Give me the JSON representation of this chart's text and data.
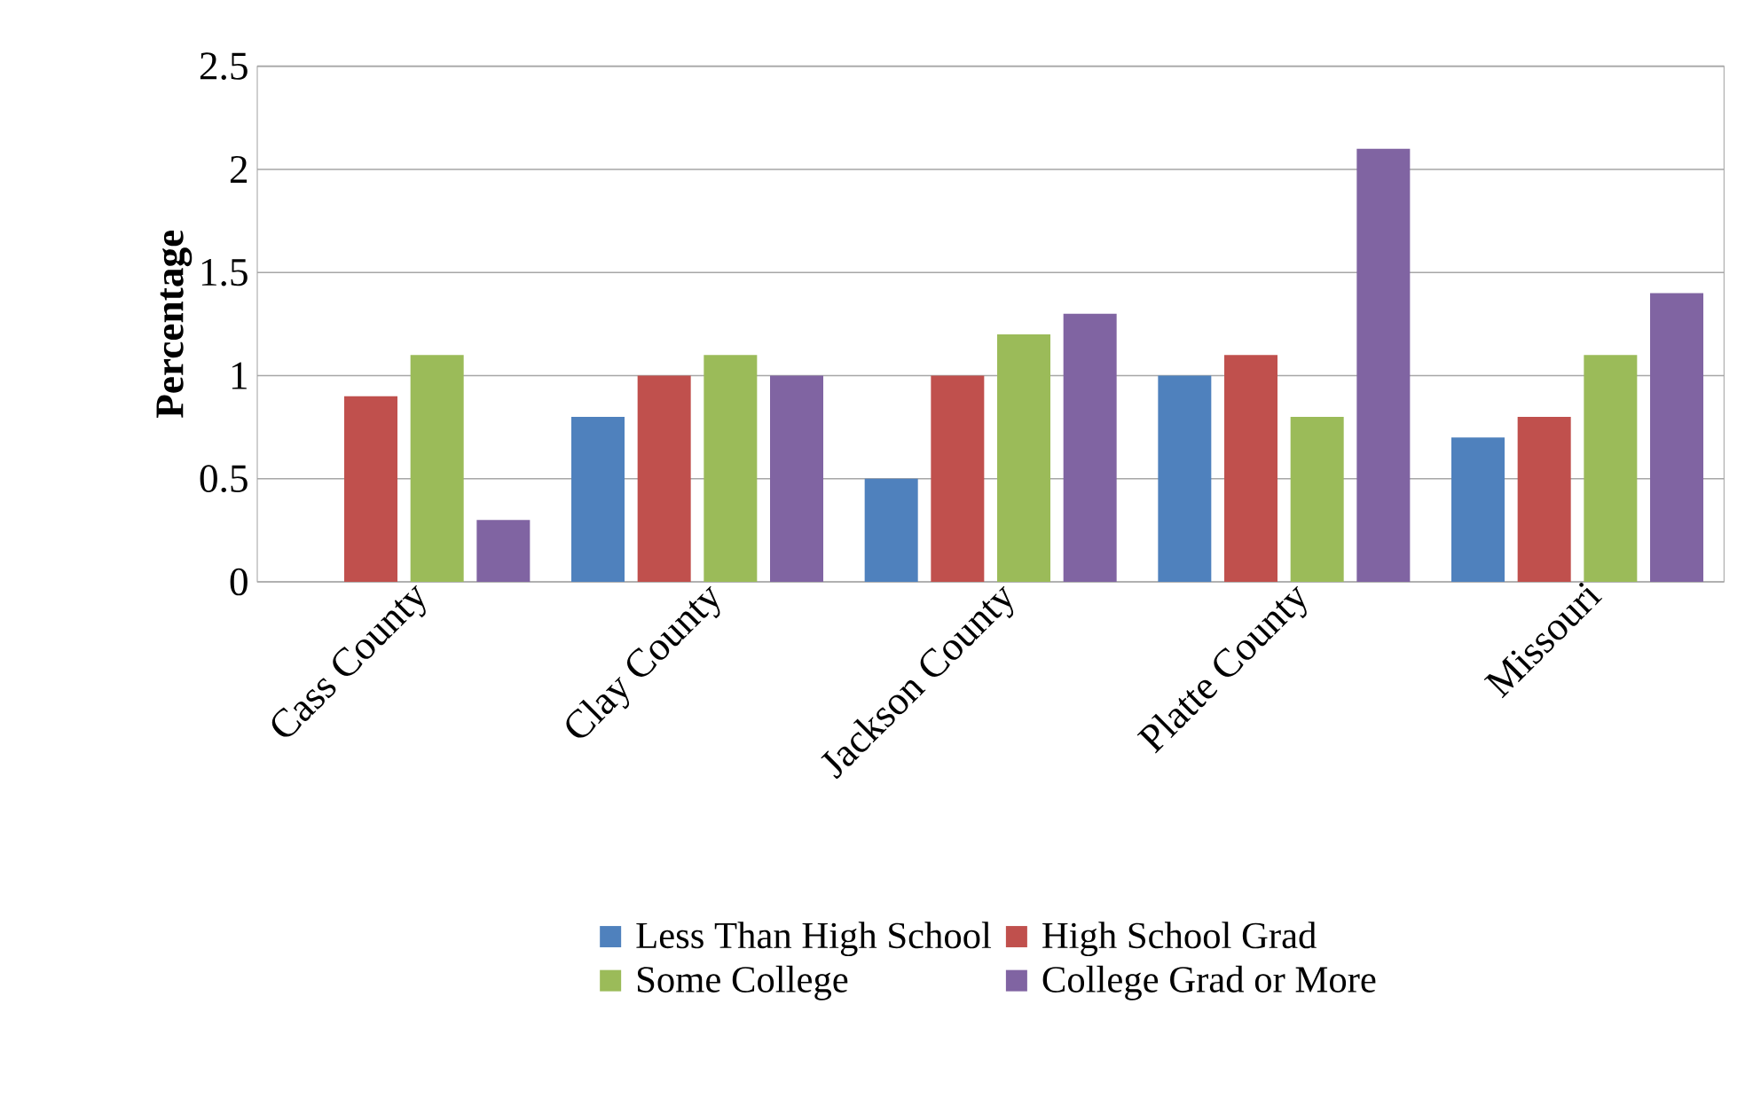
{
  "chart_data": {
    "type": "bar",
    "ylabel": "Percentage",
    "categories": [
      "Cass County",
      "Clay County",
      "Jackson County",
      "Platte County",
      "Missouri"
    ],
    "series": [
      {
        "name": "Less Than High School",
        "color": "#4f81bd",
        "values": [
          null,
          0.8,
          0.5,
          1.0,
          0.7
        ]
      },
      {
        "name": "High School Grad",
        "color": "#c0504d",
        "values": [
          0.9,
          1.0,
          1.0,
          1.1,
          0.8
        ]
      },
      {
        "name": "Some College",
        "color": "#9bbb59",
        "values": [
          1.1,
          1.1,
          1.2,
          0.8,
          1.1
        ]
      },
      {
        "name": "College Grad or More",
        "color": "#8064a2",
        "values": [
          0.3,
          1.0,
          1.3,
          2.1,
          1.4
        ]
      }
    ],
    "ylim": [
      0,
      2.5
    ],
    "yticks": [
      0,
      0.5,
      1,
      1.5,
      2,
      2.5
    ],
    "grid": "y",
    "legend": "bottom"
  }
}
